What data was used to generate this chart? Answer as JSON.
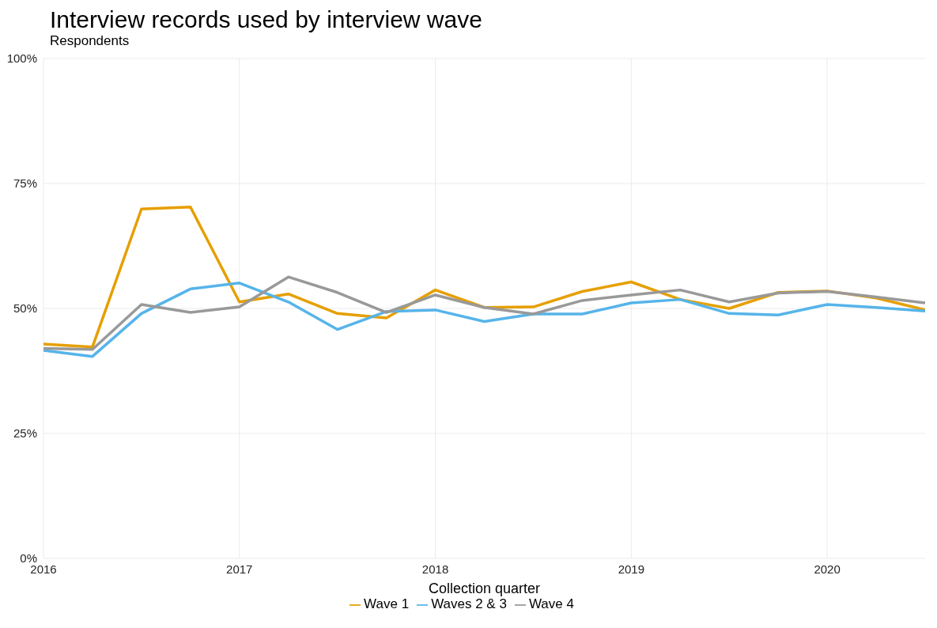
{
  "chart_data": {
    "type": "line",
    "title": "Interview records used by interview wave",
    "subtitle": "Respondents",
    "xlabel": "Collection quarter",
    "x": [
      2016,
      2016.25,
      2016.5,
      2016.75,
      2017,
      2017.25,
      2017.5,
      2017.75,
      2018,
      2018.25,
      2018.5,
      2018.75,
      2019,
      2019.25,
      2019.5,
      2019.75,
      2020,
      2020.25,
      2020.5
    ],
    "series": [
      {
        "name": "Wave 1",
        "color": "#e69f00",
        "values": [
          42.9,
          42.3,
          69.9,
          70.3,
          51.3,
          52.9,
          49.0,
          48.1,
          53.7,
          50.2,
          50.3,
          53.4,
          55.3,
          51.8,
          50.0,
          53.2,
          53.5,
          52.1,
          49.7
        ]
      },
      {
        "name": "Waves 2 & 3",
        "color": "#56b4e9",
        "values": [
          41.6,
          40.4,
          49.0,
          53.9,
          55.1,
          51.3,
          45.8,
          49.4,
          49.7,
          47.4,
          48.9,
          48.9,
          51.1,
          51.8,
          49.0,
          48.7,
          50.8,
          50.2,
          49.5
        ]
      },
      {
        "name": "Wave 4",
        "color": "#999999",
        "values": [
          42.0,
          41.8,
          50.8,
          49.2,
          50.3,
          56.3,
          53.2,
          49.2,
          52.7,
          50.2,
          48.9,
          51.6,
          52.7,
          53.7,
          51.3,
          53.1,
          53.4,
          52.3,
          51.1
        ]
      }
    ],
    "xlim": [
      2016,
      2020.5
    ],
    "xticks": [
      2016,
      2017,
      2018,
      2019,
      2020
    ],
    "ylim": [
      0,
      100
    ],
    "yticks": [
      {
        "value": 0,
        "label": "0%"
      },
      {
        "value": 25,
        "label": "25%"
      },
      {
        "value": 50,
        "label": "50%"
      },
      {
        "value": 75,
        "label": "75%"
      },
      {
        "value": 100,
        "label": "100%"
      }
    ],
    "grid": true,
    "legend": "bottom",
    "marker": "none",
    "line_style": "solid"
  }
}
